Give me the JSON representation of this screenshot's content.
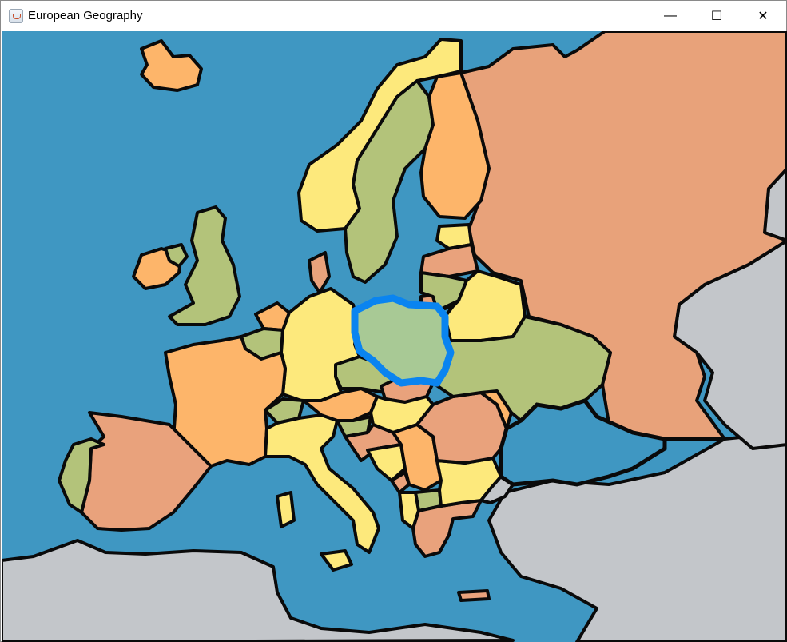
{
  "window": {
    "title": "European Geography",
    "controls": {
      "minimize": "—",
      "maximize": "☐",
      "close": "✕"
    }
  },
  "map": {
    "colors": {
      "sea": "#3f97c2",
      "outside_land": "#c3c6ca",
      "russia": "#e8a27a",
      "orange": "#fdb56a",
      "salmon": "#e9a27c",
      "yellow": "#fde97c",
      "green": "#b3c37a",
      "selected_fill": "#a8c995",
      "selected_outline": "#0a84f0",
      "border": "#0a0a0a"
    },
    "selected_country": "poland"
  }
}
